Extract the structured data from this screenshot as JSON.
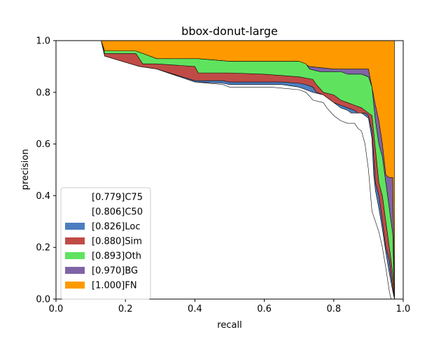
{
  "chart_data": {
    "type": "area",
    "title": "bbox-donut-large",
    "xlabel": "recall",
    "ylabel": "precision",
    "xlim": [
      0,
      1
    ],
    "ylim": [
      0,
      1
    ],
    "xticks": [
      "0.0",
      "0.2",
      "0.4",
      "0.6",
      "0.8",
      "1.0"
    ],
    "yticks": [
      "0.0",
      "0.2",
      "0.4",
      "0.6",
      "0.8",
      "1.0"
    ],
    "legend_position": "lower-left",
    "series": [
      {
        "name": "[0.779]C75",
        "color": "#ffffff",
        "edge": "#000000",
        "x": [
          0.0,
          0.13,
          0.14,
          0.24,
          0.29,
          0.4,
          0.48,
          0.5,
          0.55,
          0.6,
          0.62,
          0.7,
          0.72,
          0.74,
          0.77,
          0.78,
          0.8,
          0.82,
          0.84,
          0.86,
          0.87,
          0.88,
          0.89,
          0.9,
          0.91,
          0.92,
          0.93,
          0.94,
          0.95,
          0.96,
          0.965
        ],
        "y": [
          1.0,
          1.0,
          0.94,
          0.9,
          0.89,
          0.84,
          0.83,
          0.82,
          0.82,
          0.82,
          0.82,
          0.81,
          0.8,
          0.77,
          0.76,
          0.74,
          0.71,
          0.69,
          0.68,
          0.68,
          0.66,
          0.65,
          0.6,
          0.5,
          0.34,
          0.3,
          0.26,
          0.2,
          0.12,
          0.03,
          0.0
        ]
      },
      {
        "name": "[0.806]C50",
        "color": "#ffffff",
        "edge": "#000000",
        "x": [
          0.0,
          0.13,
          0.14,
          0.24,
          0.29,
          0.4,
          0.48,
          0.5,
          0.6,
          0.65,
          0.7,
          0.72,
          0.74,
          0.77,
          0.79,
          0.8,
          0.82,
          0.84,
          0.85,
          0.86,
          0.87,
          0.88,
          0.89,
          0.9,
          0.91,
          0.915,
          0.92,
          0.93,
          0.94,
          0.95,
          0.96,
          0.97,
          0.975
        ],
        "y": [
          1.0,
          1.0,
          0.94,
          0.9,
          0.89,
          0.84,
          0.835,
          0.83,
          0.83,
          0.83,
          0.82,
          0.81,
          0.8,
          0.79,
          0.77,
          0.76,
          0.74,
          0.73,
          0.72,
          0.72,
          0.72,
          0.72,
          0.71,
          0.7,
          0.62,
          0.48,
          0.42,
          0.35,
          0.27,
          0.18,
          0.1,
          0.03,
          0.0
        ]
      },
      {
        "name": "[0.826]Loc",
        "color": "#4c7ebf",
        "edge": "#000000",
        "x": [
          0.0,
          0.13,
          0.14,
          0.24,
          0.29,
          0.4,
          0.48,
          0.5,
          0.6,
          0.65,
          0.7,
          0.72,
          0.74,
          0.75,
          0.77,
          0.79,
          0.8,
          0.82,
          0.84,
          0.85,
          0.86,
          0.87,
          0.88,
          0.89,
          0.9,
          0.91,
          0.92,
          0.93,
          0.94,
          0.95,
          0.96,
          0.97,
          0.975
        ],
        "y": [
          1.0,
          1.0,
          0.94,
          0.9,
          0.89,
          0.845,
          0.845,
          0.84,
          0.84,
          0.84,
          0.835,
          0.83,
          0.82,
          0.8,
          0.79,
          0.77,
          0.76,
          0.75,
          0.74,
          0.735,
          0.73,
          0.72,
          0.72,
          0.72,
          0.71,
          0.65,
          0.45,
          0.4,
          0.3,
          0.2,
          0.15,
          0.04,
          0.0
        ]
      },
      {
        "name": "[0.880]Sim",
        "color": "#c04b46",
        "edge": "#000000",
        "x": [
          0.0,
          0.13,
          0.14,
          0.23,
          0.25,
          0.29,
          0.4,
          0.41,
          0.5,
          0.6,
          0.7,
          0.74,
          0.75,
          0.77,
          0.8,
          0.82,
          0.84,
          0.86,
          0.88,
          0.9,
          0.91,
          0.92,
          0.93,
          0.94,
          0.95,
          0.96,
          0.97,
          0.975
        ],
        "y": [
          1.0,
          1.0,
          0.95,
          0.95,
          0.91,
          0.91,
          0.9,
          0.875,
          0.875,
          0.87,
          0.86,
          0.85,
          0.83,
          0.8,
          0.79,
          0.77,
          0.76,
          0.75,
          0.74,
          0.72,
          0.71,
          0.58,
          0.45,
          0.4,
          0.3,
          0.2,
          0.1,
          0.0
        ]
      },
      {
        "name": "[0.893]Oth",
        "color": "#5fe35f",
        "edge": "#000000",
        "x": [
          0.0,
          0.13,
          0.14,
          0.23,
          0.29,
          0.41,
          0.5,
          0.6,
          0.7,
          0.72,
          0.73,
          0.76,
          0.78,
          0.8,
          0.82,
          0.84,
          0.86,
          0.88,
          0.9,
          0.91,
          0.92,
          0.93,
          0.94,
          0.95,
          0.96,
          0.97,
          0.975
        ],
        "y": [
          1.0,
          1.0,
          0.96,
          0.96,
          0.93,
          0.93,
          0.92,
          0.92,
          0.92,
          0.91,
          0.89,
          0.88,
          0.88,
          0.88,
          0.88,
          0.87,
          0.87,
          0.87,
          0.86,
          0.82,
          0.69,
          0.6,
          0.55,
          0.45,
          0.35,
          0.25,
          0.0
        ]
      },
      {
        "name": "[0.970]BG",
        "color": "#7f63a6",
        "edge": "#000000",
        "x": [
          0.0,
          0.13,
          0.14,
          0.23,
          0.29,
          0.41,
          0.5,
          0.6,
          0.7,
          0.73,
          0.8,
          0.86,
          0.9,
          0.91,
          0.92,
          0.93,
          0.94,
          0.95,
          0.96,
          0.97,
          0.975
        ],
        "y": [
          1.0,
          1.0,
          0.96,
          0.96,
          0.93,
          0.93,
          0.92,
          0.92,
          0.92,
          0.9,
          0.89,
          0.89,
          0.89,
          0.82,
          0.75,
          0.69,
          0.6,
          0.48,
          0.47,
          0.47,
          0.0
        ]
      },
      {
        "name": "[1.000]FN",
        "color": "#fe9a00",
        "edge": "#000000",
        "x": [
          0.0,
          0.975,
          0.975,
          1.0
        ],
        "y": [
          1.0,
          1.0,
          0.0,
          0.0
        ]
      }
    ]
  }
}
